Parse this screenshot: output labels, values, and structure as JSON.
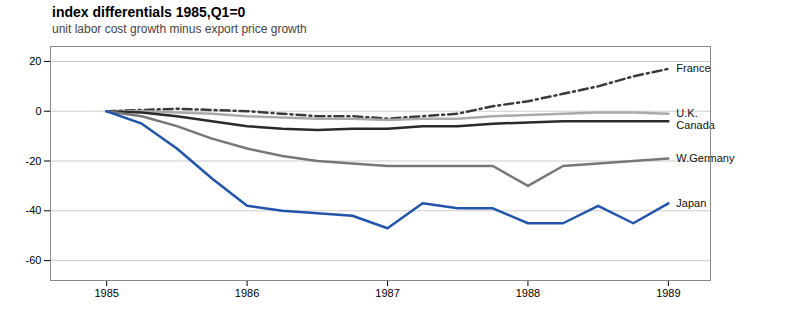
{
  "chart_data": {
    "type": "line",
    "title": "index differentials 1985,Q1=0",
    "subtitle": "unit labor cost growth minus export price growth",
    "x": [
      1985,
      1985.25,
      1985.5,
      1985.75,
      1986,
      1986.25,
      1986.5,
      1986.75,
      1987,
      1987.25,
      1987.5,
      1987.75,
      1988,
      1988.25,
      1988.5,
      1988.75,
      1989
    ],
    "xlim": [
      1984.6,
      1989.3
    ],
    "xticks": [
      1985,
      1986,
      1987,
      1988,
      1989
    ],
    "ylim": [
      -68,
      26
    ],
    "yticks": [
      20,
      0,
      -20,
      -40,
      -60
    ],
    "grid": true,
    "series": [
      {
        "name": "France",
        "color": "#3a3a3a",
        "line_style": "dashdot",
        "values": [
          0,
          0.5,
          1,
          0.5,
          0,
          -1,
          -2,
          -2,
          -3,
          -2,
          -1,
          2,
          4,
          7,
          10,
          14,
          17
        ]
      },
      {
        "name": "U.K.",
        "color": "#aaaaaa",
        "line_style": "solid",
        "values": [
          0,
          0,
          -0.5,
          -1,
          -2,
          -2.5,
          -3,
          -3,
          -3.5,
          -3,
          -3,
          -2,
          -1.5,
          -1,
          -0.5,
          -0.5,
          -1
        ]
      },
      {
        "name": "Canada",
        "color": "#2a2a2a",
        "line_style": "solid",
        "values": [
          0,
          -0.5,
          -2,
          -4,
          -6,
          -7,
          -7.5,
          -7,
          -7,
          -6,
          -6,
          -5,
          -4.5,
          -4,
          -4,
          -4,
          -4
        ]
      },
      {
        "name": "W.Germany",
        "color": "#777777",
        "line_style": "solid",
        "values": [
          0,
          -2,
          -6,
          -11,
          -15,
          -18,
          -20,
          -21,
          -22,
          -22,
          -22,
          -22,
          -30,
          -22,
          -21,
          -20,
          -19
        ]
      },
      {
        "name": "Japan",
        "color": "#2255aa",
        "line_style": "solid",
        "values": [
          0,
          -5,
          -15,
          -27,
          -38,
          -40,
          -41,
          -42,
          -47,
          -37,
          -39,
          -39,
          -45,
          -45,
          -38,
          -45,
          -37
        ]
      }
    ]
  }
}
